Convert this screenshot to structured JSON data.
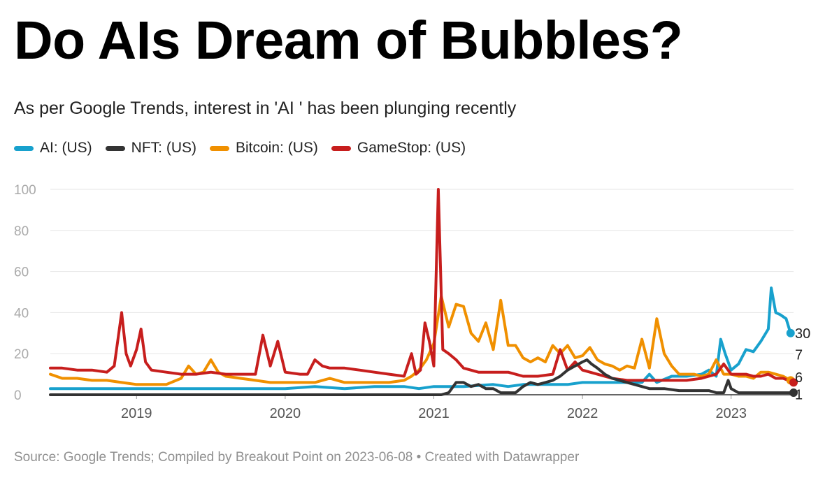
{
  "title": "Do AIs Dream of Bubbles?",
  "subtitle": "As per Google Trends, interest in 'AI ' has been plunging recently",
  "source": "Source: Google Trends; Compiled by Breakout Point on 2023-06-08 • Created with Datawrapper",
  "colors": {
    "ai": "#18a1cd",
    "nft": "#333333",
    "bitcoin": "#f09000",
    "gamestop": "#c71e1d",
    "grid": "#e6e6e6",
    "axis_text": "#aaaaaa"
  },
  "chart_data": {
    "type": "line",
    "title": "Do AIs Dream of Bubbles?",
    "xlabel": "",
    "ylabel": "",
    "ylim": [
      0,
      100
    ],
    "xlim": [
      2018.42,
      2023.42
    ],
    "yticks": [
      0,
      20,
      40,
      60,
      80,
      100
    ],
    "ytick_labels": [
      "0",
      "20",
      "40",
      "60",
      "80",
      "100"
    ],
    "xticks": [
      2019,
      2020,
      2021,
      2022,
      2023
    ],
    "xtick_labels": [
      "2019",
      "2020",
      "2021",
      "2022",
      "2023"
    ],
    "grid": true,
    "legend_position": "top-left",
    "series": [
      {
        "key": "ai",
        "name": "AI: (US)",
        "end_label": "30",
        "points": [
          [
            2018.42,
            3
          ],
          [
            2018.6,
            3
          ],
          [
            2018.8,
            3
          ],
          [
            2019.0,
            3
          ],
          [
            2019.2,
            3
          ],
          [
            2019.4,
            3
          ],
          [
            2019.6,
            3
          ],
          [
            2019.8,
            3
          ],
          [
            2020.0,
            3
          ],
          [
            2020.2,
            4
          ],
          [
            2020.4,
            3
          ],
          [
            2020.6,
            4
          ],
          [
            2020.8,
            4
          ],
          [
            2020.9,
            3
          ],
          [
            2021.0,
            4
          ],
          [
            2021.1,
            4
          ],
          [
            2021.2,
            4
          ],
          [
            2021.4,
            5
          ],
          [
            2021.5,
            4
          ],
          [
            2021.6,
            5
          ],
          [
            2021.7,
            5
          ],
          [
            2021.8,
            5
          ],
          [
            2021.9,
            5
          ],
          [
            2022.0,
            6
          ],
          [
            2022.1,
            6
          ],
          [
            2022.2,
            6
          ],
          [
            2022.3,
            6
          ],
          [
            2022.4,
            6
          ],
          [
            2022.45,
            10
          ],
          [
            2022.5,
            6
          ],
          [
            2022.6,
            9
          ],
          [
            2022.7,
            9
          ],
          [
            2022.8,
            10
          ],
          [
            2022.85,
            12
          ],
          [
            2022.9,
            9
          ],
          [
            2022.93,
            27
          ],
          [
            2022.96,
            20
          ],
          [
            2023.0,
            12
          ],
          [
            2023.05,
            15
          ],
          [
            2023.1,
            22
          ],
          [
            2023.15,
            21
          ],
          [
            2023.2,
            26
          ],
          [
            2023.25,
            32
          ],
          [
            2023.27,
            52
          ],
          [
            2023.3,
            40
          ],
          [
            2023.33,
            39
          ],
          [
            2023.37,
            37
          ],
          [
            2023.4,
            30
          ]
        ]
      },
      {
        "key": "nft",
        "name": "NFT: (US)",
        "end_label": "1",
        "points": [
          [
            2018.42,
            0
          ],
          [
            2018.8,
            0
          ],
          [
            2019.2,
            0
          ],
          [
            2019.6,
            0
          ],
          [
            2020.0,
            0
          ],
          [
            2020.4,
            0
          ],
          [
            2020.8,
            0
          ],
          [
            2021.05,
            0
          ],
          [
            2021.1,
            1
          ],
          [
            2021.15,
            6
          ],
          [
            2021.2,
            6
          ],
          [
            2021.25,
            4
          ],
          [
            2021.3,
            5
          ],
          [
            2021.35,
            3
          ],
          [
            2021.4,
            3
          ],
          [
            2021.45,
            1
          ],
          [
            2021.5,
            1
          ],
          [
            2021.55,
            1
          ],
          [
            2021.6,
            4
          ],
          [
            2021.65,
            6
          ],
          [
            2021.7,
            5
          ],
          [
            2021.75,
            6
          ],
          [
            2021.8,
            7
          ],
          [
            2021.85,
            9
          ],
          [
            2021.9,
            12
          ],
          [
            2021.95,
            14
          ],
          [
            2022.0,
            16
          ],
          [
            2022.03,
            17
          ],
          [
            2022.06,
            15
          ],
          [
            2022.1,
            13
          ],
          [
            2022.15,
            10
          ],
          [
            2022.2,
            8
          ],
          [
            2022.25,
            7
          ],
          [
            2022.3,
            6
          ],
          [
            2022.35,
            5
          ],
          [
            2022.45,
            3
          ],
          [
            2022.55,
            3
          ],
          [
            2022.65,
            2
          ],
          [
            2022.75,
            2
          ],
          [
            2022.85,
            2
          ],
          [
            2022.9,
            1
          ],
          [
            2022.95,
            1
          ],
          [
            2022.98,
            7
          ],
          [
            2023.0,
            3
          ],
          [
            2023.05,
            1
          ],
          [
            2023.15,
            1
          ],
          [
            2023.25,
            1
          ],
          [
            2023.35,
            1
          ],
          [
            2023.42,
            1
          ]
        ]
      },
      {
        "key": "bitcoin",
        "name": "Bitcoin: (US)",
        "end_label": "7",
        "points": [
          [
            2018.42,
            10
          ],
          [
            2018.5,
            8
          ],
          [
            2018.6,
            8
          ],
          [
            2018.7,
            7
          ],
          [
            2018.8,
            7
          ],
          [
            2018.9,
            6
          ],
          [
            2019.0,
            5
          ],
          [
            2019.1,
            5
          ],
          [
            2019.2,
            5
          ],
          [
            2019.3,
            8
          ],
          [
            2019.35,
            14
          ],
          [
            2019.4,
            10
          ],
          [
            2019.45,
            11
          ],
          [
            2019.5,
            17
          ],
          [
            2019.55,
            11
          ],
          [
            2019.6,
            9
          ],
          [
            2019.7,
            8
          ],
          [
            2019.8,
            7
          ],
          [
            2019.9,
            6
          ],
          [
            2020.0,
            6
          ],
          [
            2020.1,
            6
          ],
          [
            2020.2,
            6
          ],
          [
            2020.3,
            8
          ],
          [
            2020.4,
            6
          ],
          [
            2020.5,
            6
          ],
          [
            2020.6,
            6
          ],
          [
            2020.7,
            6
          ],
          [
            2020.8,
            7
          ],
          [
            2020.85,
            9
          ],
          [
            2020.9,
            12
          ],
          [
            2020.95,
            17
          ],
          [
            2021.0,
            25
          ],
          [
            2021.05,
            48
          ],
          [
            2021.1,
            33
          ],
          [
            2021.15,
            44
          ],
          [
            2021.2,
            43
          ],
          [
            2021.25,
            30
          ],
          [
            2021.3,
            26
          ],
          [
            2021.35,
            35
          ],
          [
            2021.4,
            22
          ],
          [
            2021.45,
            46
          ],
          [
            2021.5,
            24
          ],
          [
            2021.55,
            24
          ],
          [
            2021.6,
            18
          ],
          [
            2021.65,
            16
          ],
          [
            2021.7,
            18
          ],
          [
            2021.75,
            16
          ],
          [
            2021.8,
            24
          ],
          [
            2021.85,
            20
          ],
          [
            2021.9,
            24
          ],
          [
            2021.95,
            18
          ],
          [
            2022.0,
            19
          ],
          [
            2022.05,
            23
          ],
          [
            2022.1,
            17
          ],
          [
            2022.15,
            15
          ],
          [
            2022.2,
            14
          ],
          [
            2022.25,
            12
          ],
          [
            2022.3,
            14
          ],
          [
            2022.35,
            13
          ],
          [
            2022.4,
            27
          ],
          [
            2022.45,
            13
          ],
          [
            2022.5,
            37
          ],
          [
            2022.55,
            20
          ],
          [
            2022.6,
            14
          ],
          [
            2022.65,
            10
          ],
          [
            2022.7,
            10
          ],
          [
            2022.75,
            10
          ],
          [
            2022.8,
            9
          ],
          [
            2022.85,
            10
          ],
          [
            2022.9,
            17
          ],
          [
            2022.95,
            10
          ],
          [
            2023.0,
            10
          ],
          [
            2023.05,
            9
          ],
          [
            2023.1,
            9
          ],
          [
            2023.15,
            8
          ],
          [
            2023.2,
            11
          ],
          [
            2023.25,
            11
          ],
          [
            2023.3,
            10
          ],
          [
            2023.35,
            9
          ],
          [
            2023.4,
            7
          ]
        ]
      },
      {
        "key": "gamestop",
        "name": "GameStop: (US)",
        "end_label": "6",
        "points": [
          [
            2018.42,
            13
          ],
          [
            2018.5,
            13
          ],
          [
            2018.6,
            12
          ],
          [
            2018.7,
            12
          ],
          [
            2018.8,
            11
          ],
          [
            2018.85,
            14
          ],
          [
            2018.9,
            40
          ],
          [
            2018.93,
            20
          ],
          [
            2018.96,
            14
          ],
          [
            2019.0,
            22
          ],
          [
            2019.03,
            32
          ],
          [
            2019.06,
            16
          ],
          [
            2019.1,
            12
          ],
          [
            2019.2,
            11
          ],
          [
            2019.3,
            10
          ],
          [
            2019.4,
            10
          ],
          [
            2019.5,
            11
          ],
          [
            2019.6,
            10
          ],
          [
            2019.7,
            10
          ],
          [
            2019.8,
            10
          ],
          [
            2019.85,
            29
          ],
          [
            2019.9,
            14
          ],
          [
            2019.95,
            26
          ],
          [
            2020.0,
            11
          ],
          [
            2020.1,
            10
          ],
          [
            2020.15,
            10
          ],
          [
            2020.2,
            17
          ],
          [
            2020.25,
            14
          ],
          [
            2020.3,
            13
          ],
          [
            2020.4,
            13
          ],
          [
            2020.5,
            12
          ],
          [
            2020.6,
            11
          ],
          [
            2020.7,
            10
          ],
          [
            2020.8,
            9
          ],
          [
            2020.85,
            20
          ],
          [
            2020.88,
            10
          ],
          [
            2020.91,
            12
          ],
          [
            2020.94,
            35
          ],
          [
            2020.97,
            26
          ],
          [
            2021.0,
            14
          ],
          [
            2021.03,
            100
          ],
          [
            2021.06,
            22
          ],
          [
            2021.1,
            20
          ],
          [
            2021.15,
            17
          ],
          [
            2021.2,
            13
          ],
          [
            2021.3,
            11
          ],
          [
            2021.4,
            11
          ],
          [
            2021.5,
            11
          ],
          [
            2021.6,
            9
          ],
          [
            2021.7,
            9
          ],
          [
            2021.8,
            10
          ],
          [
            2021.85,
            22
          ],
          [
            2021.9,
            12
          ],
          [
            2021.95,
            16
          ],
          [
            2022.0,
            12
          ],
          [
            2022.1,
            10
          ],
          [
            2022.2,
            8
          ],
          [
            2022.3,
            7
          ],
          [
            2022.4,
            7
          ],
          [
            2022.5,
            7
          ],
          [
            2022.6,
            7
          ],
          [
            2022.7,
            7
          ],
          [
            2022.8,
            8
          ],
          [
            2022.85,
            9
          ],
          [
            2022.9,
            10
          ],
          [
            2022.95,
            15
          ],
          [
            2023.0,
            10
          ],
          [
            2023.05,
            10
          ],
          [
            2023.1,
            10
          ],
          [
            2023.15,
            9
          ],
          [
            2023.2,
            9
          ],
          [
            2023.25,
            10
          ],
          [
            2023.3,
            8
          ],
          [
            2023.35,
            8
          ],
          [
            2023.42,
            6
          ]
        ]
      }
    ]
  }
}
